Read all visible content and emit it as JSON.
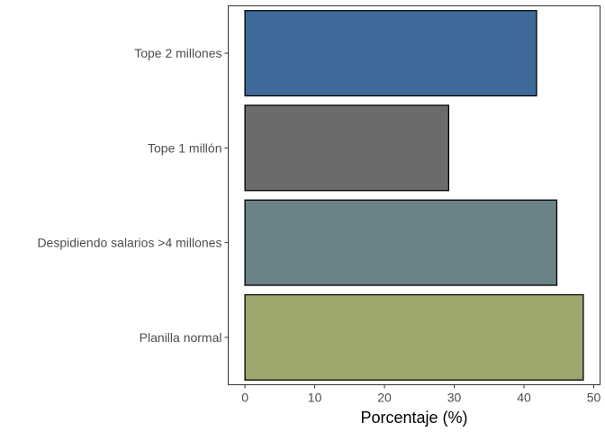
{
  "chart_data": {
    "type": "bar",
    "orientation": "horizontal",
    "categories": [
      "Tope 2 millones",
      "Tope 1 millón",
      "Despidiendo salarios >4 millones",
      "Planilla normal"
    ],
    "values": [
      41.8,
      29.2,
      44.7,
      48.5
    ],
    "colors": [
      "#3e6a99",
      "#6b6b6b",
      "#6b8286",
      "#9fa66d"
    ],
    "title": "",
    "xlabel": "Porcentaje (%)",
    "ylabel": "",
    "xlim": [
      -2.4,
      50.9
    ],
    "x_ticks": [
      0,
      10,
      20,
      30,
      40,
      50
    ],
    "grid": false,
    "legend": "none"
  }
}
